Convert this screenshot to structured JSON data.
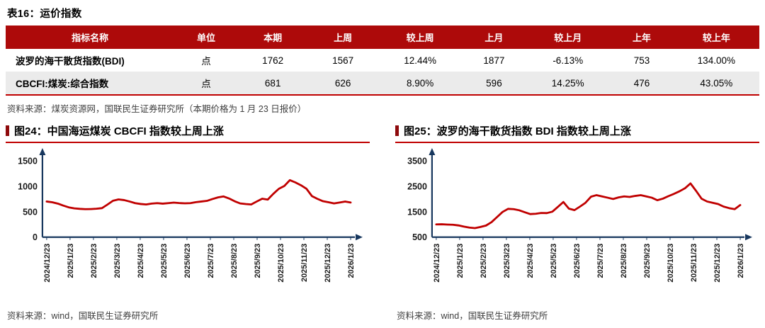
{
  "colors": {
    "header_red": "#AD0A0A",
    "accent_red": "#C00000",
    "axis_navy": "#17375E",
    "row_alt_gray": "#EBEBEB",
    "line_red": "#C00000"
  },
  "table": {
    "title": "表16：运价指数",
    "headers": [
      "指标名称",
      "单位",
      "本期",
      "上周",
      "较上周",
      "上月",
      "较上月",
      "上年",
      "较上年"
    ],
    "rows": [
      [
        "波罗的海干散货指数(BDI)",
        "点",
        "1762",
        "1567",
        "12.44%",
        "1877",
        "-6.13%",
        "753",
        "134.00%"
      ],
      [
        "CBCFI:煤炭:综合指数",
        "点",
        "681",
        "626",
        "8.90%",
        "596",
        "14.25%",
        "476",
        "43.05%"
      ]
    ],
    "source": "资料来源：煤炭资源网，国联民生证券研究所（本期价格为 1 月 23 日报价）"
  },
  "chart_data": [
    {
      "type": "line",
      "title": "图24：中国海运煤炭 CBCFI 指数较上周上涨",
      "xlabel": "",
      "ylabel": "",
      "ylim": [
        0,
        1500
      ],
      "yticks": [
        0,
        500,
        1000,
        1500
      ],
      "grid": false,
      "legend": "none",
      "x_ticks": [
        "2024/12/23",
        "2025/1/23",
        "2025/2/23",
        "2025/3/23",
        "2025/4/23",
        "2025/5/23",
        "2025/6/23",
        "2025/7/23",
        "2025/8/23",
        "2025/9/23",
        "2025/10/23",
        "2025/11/23",
        "2025/12/23",
        "2026/1/23"
      ],
      "values": [
        700,
        685,
        660,
        620,
        585,
        565,
        555,
        550,
        552,
        558,
        570,
        640,
        715,
        740,
        728,
        700,
        668,
        652,
        642,
        660,
        668,
        658,
        668,
        678,
        670,
        664,
        668,
        688,
        700,
        712,
        748,
        780,
        800,
        760,
        705,
        662,
        650,
        642,
        700,
        755,
        738,
        850,
        950,
        1005,
        1120,
        1075,
        1020,
        950,
        805,
        752,
        705,
        685,
        662,
        680,
        700,
        681
      ],
      "line_color": "#C00000",
      "source": "资料来源：wind，国联民生证券研究所"
    },
    {
      "type": "line",
      "title": "图25：波罗的海干散货指数 BDI 指数较上周上涨",
      "xlabel": "",
      "ylabel": "",
      "ylim": [
        500,
        3500
      ],
      "yticks": [
        500,
        1500,
        2500,
        3500
      ],
      "grid": false,
      "legend": "none",
      "x_ticks": [
        "2024/12/23",
        "2025/1/23",
        "2025/2/23",
        "2025/3/23",
        "2025/4/23",
        "2025/5/23",
        "2025/6/23",
        "2025/7/23",
        "2025/8/23",
        "2025/9/23",
        "2025/10/23",
        "2025/11/23",
        "2025/12/23",
        "2026/1/23"
      ],
      "values": [
        1000,
        1005,
        995,
        985,
        960,
        915,
        875,
        855,
        900,
        955,
        1090,
        1290,
        1490,
        1610,
        1600,
        1555,
        1480,
        1405,
        1420,
        1450,
        1445,
        1500,
        1690,
        1880,
        1620,
        1560,
        1700,
        1850,
        2090,
        2150,
        2100,
        2050,
        2000,
        2060,
        2100,
        2080,
        2120,
        2150,
        2100,
        2050,
        1950,
        2010,
        2110,
        2200,
        2300,
        2420,
        2610,
        2320,
        2010,
        1900,
        1850,
        1800,
        1700,
        1640,
        1600,
        1762
      ],
      "line_color": "#C00000",
      "source": "资料来源：wind，国联民生证券研究所"
    }
  ]
}
